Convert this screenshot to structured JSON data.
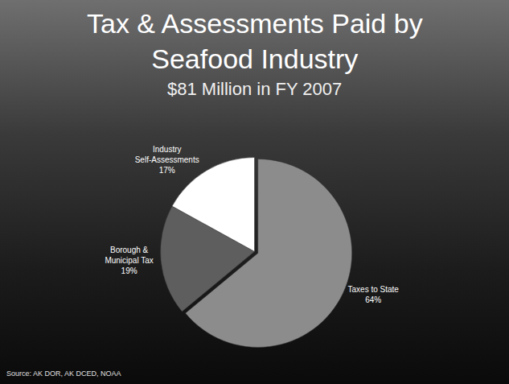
{
  "chart_data": {
    "type": "pie",
    "title": "Tax & Assessments Paid by Seafood Industry",
    "subtitle": "$81 Million in FY 2007",
    "categories": [
      "Taxes to State",
      "Borough & Municipal Tax",
      "Industry Self-Assessments"
    ],
    "values": [
      64,
      19,
      17
    ],
    "value_labels": [
      "64%",
      "19%",
      "17%"
    ],
    "colors": [
      "#8c8c8c",
      "#5e5e5e",
      "#ffffff"
    ],
    "data_labels": true,
    "annotations": [
      "Source: AK DOR, AK DCED, NOAA"
    ]
  }
}
